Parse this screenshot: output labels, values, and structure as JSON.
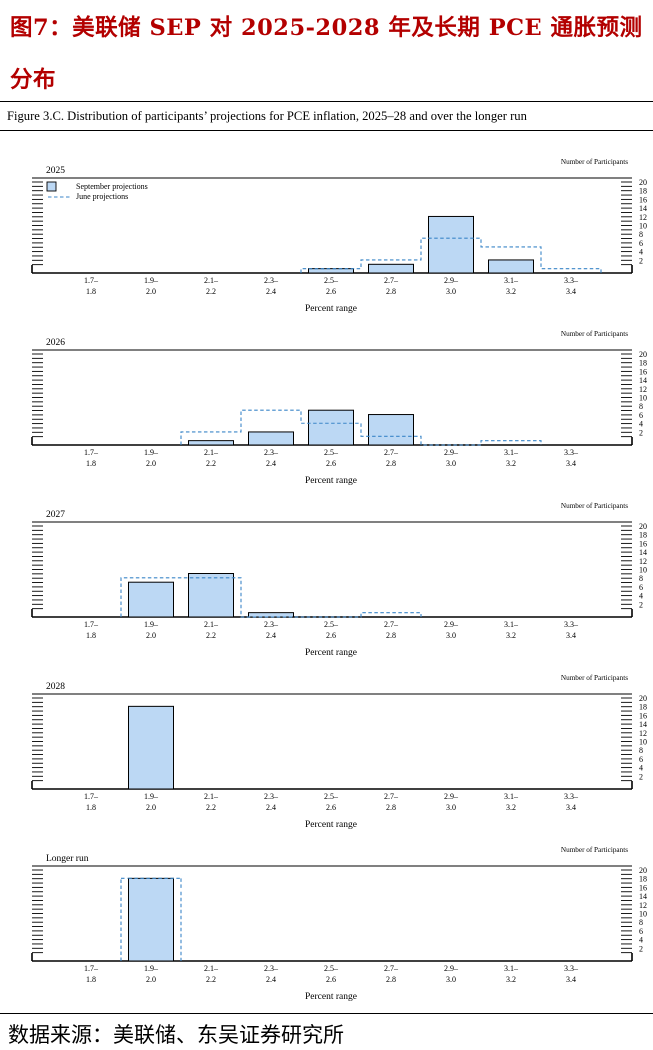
{
  "header": {
    "title": "图7：美联储 SEP 对 2025-2028 年及长期 PCE 通胀预测分布"
  },
  "figure": {
    "caption": "Figure 3.C. Distribution of participants’ projections for PCE inflation, 2025–28 and over the longer run"
  },
  "source": "数据来源：美联储、东吴证券研究所",
  "colors": {
    "title": "#b30000",
    "bar_fill": "#bcd8f4",
    "bar_stroke": "#000000",
    "june_line": "#3b86c8"
  },
  "chart_data": [
    {
      "type": "bar",
      "title": "2025",
      "xlabel": "Percent range",
      "ylabel": "Number of Participants",
      "categories_top": [
        "1.7–",
        "1.9–",
        "2.1–",
        "2.3–",
        "2.5–",
        "2.7–",
        "2.9–",
        "3.1–",
        "3.3–"
      ],
      "categories_bottom": [
        "1.8",
        "2.0",
        "2.2",
        "2.4",
        "2.6",
        "2.8",
        "3.0",
        "3.2",
        "3.4"
      ],
      "yticks": [
        2,
        4,
        6,
        8,
        10,
        12,
        14,
        16,
        18,
        20
      ],
      "ylim": [
        0,
        20
      ],
      "legend": [
        "September projections",
        "June projections"
      ],
      "series": [
        {
          "name": "September projections",
          "values": [
            0,
            0,
            0,
            0,
            1,
            2,
            13,
            3,
            0
          ]
        },
        {
          "name": "June projections",
          "values": [
            0,
            0,
            0,
            0,
            1,
            3,
            8,
            6,
            1
          ]
        }
      ]
    },
    {
      "type": "bar",
      "title": "2026",
      "xlabel": "Percent range",
      "ylabel": "Number of Participants",
      "categories_top": [
        "1.7–",
        "1.9–",
        "2.1–",
        "2.3–",
        "2.5–",
        "2.7–",
        "2.9–",
        "3.1–",
        "3.3–"
      ],
      "categories_bottom": [
        "1.8",
        "2.0",
        "2.2",
        "2.4",
        "2.6",
        "2.8",
        "3.0",
        "3.2",
        "3.4"
      ],
      "yticks": [
        2,
        4,
        6,
        8,
        10,
        12,
        14,
        16,
        18,
        20
      ],
      "ylim": [
        0,
        20
      ],
      "series": [
        {
          "name": "September projections",
          "values": [
            0,
            0,
            1,
            3,
            8,
            7,
            0,
            0,
            0
          ]
        },
        {
          "name": "June projections",
          "values": [
            0,
            0,
            3,
            8,
            5,
            2,
            0,
            1,
            0
          ]
        }
      ]
    },
    {
      "type": "bar",
      "title": "2027",
      "xlabel": "Percent range",
      "ylabel": "Number of Participants",
      "categories_top": [
        "1.7–",
        "1.9–",
        "2.1–",
        "2.3–",
        "2.5–",
        "2.7–",
        "2.9–",
        "3.1–",
        "3.3–"
      ],
      "categories_bottom": [
        "1.8",
        "2.0",
        "2.2",
        "2.4",
        "2.6",
        "2.8",
        "3.0",
        "3.2",
        "3.4"
      ],
      "yticks": [
        2,
        4,
        6,
        8,
        10,
        12,
        14,
        16,
        18,
        20
      ],
      "ylim": [
        0,
        20
      ],
      "series": [
        {
          "name": "September projections",
          "values": [
            0,
            8,
            10,
            1,
            0,
            0,
            0,
            0,
            0
          ]
        },
        {
          "name": "June projections",
          "values": [
            0,
            9,
            9,
            0,
            0,
            1,
            0,
            0,
            0
          ]
        }
      ]
    },
    {
      "type": "bar",
      "title": "2028",
      "xlabel": "Percent range",
      "ylabel": "Number of Participants",
      "categories_top": [
        "1.7–",
        "1.9–",
        "2.1–",
        "2.3–",
        "2.5–",
        "2.7–",
        "2.9–",
        "3.1–",
        "3.3–"
      ],
      "categories_bottom": [
        "1.8",
        "2.0",
        "2.2",
        "2.4",
        "2.6",
        "2.8",
        "3.0",
        "3.2",
        "3.4"
      ],
      "yticks": [
        2,
        4,
        6,
        8,
        10,
        12,
        14,
        16,
        18,
        20
      ],
      "ylim": [
        0,
        20
      ],
      "series": [
        {
          "name": "September projections",
          "values": [
            0,
            19,
            0,
            0,
            0,
            0,
            0,
            0,
            0
          ]
        },
        {
          "name": "June projections",
          "values": [
            0,
            0,
            0,
            0,
            0,
            0,
            0,
            0,
            0
          ]
        }
      ]
    },
    {
      "type": "bar",
      "title": "Longer run",
      "xlabel": "Percent range",
      "ylabel": "Number of Participants",
      "categories_top": [
        "1.7–",
        "1.9–",
        "2.1–",
        "2.3–",
        "2.5–",
        "2.7–",
        "2.9–",
        "3.1–",
        "3.3–"
      ],
      "categories_bottom": [
        "1.8",
        "2.0",
        "2.2",
        "2.4",
        "2.6",
        "2.8",
        "3.0",
        "3.2",
        "3.4"
      ],
      "yticks": [
        2,
        4,
        6,
        8,
        10,
        12,
        14,
        16,
        18,
        20
      ],
      "ylim": [
        0,
        20
      ],
      "series": [
        {
          "name": "September projections",
          "values": [
            0,
            19,
            0,
            0,
            0,
            0,
            0,
            0,
            0
          ]
        },
        {
          "name": "June projections",
          "values": [
            0,
            19,
            0,
            0,
            0,
            0,
            0,
            0,
            0
          ]
        }
      ]
    }
  ]
}
